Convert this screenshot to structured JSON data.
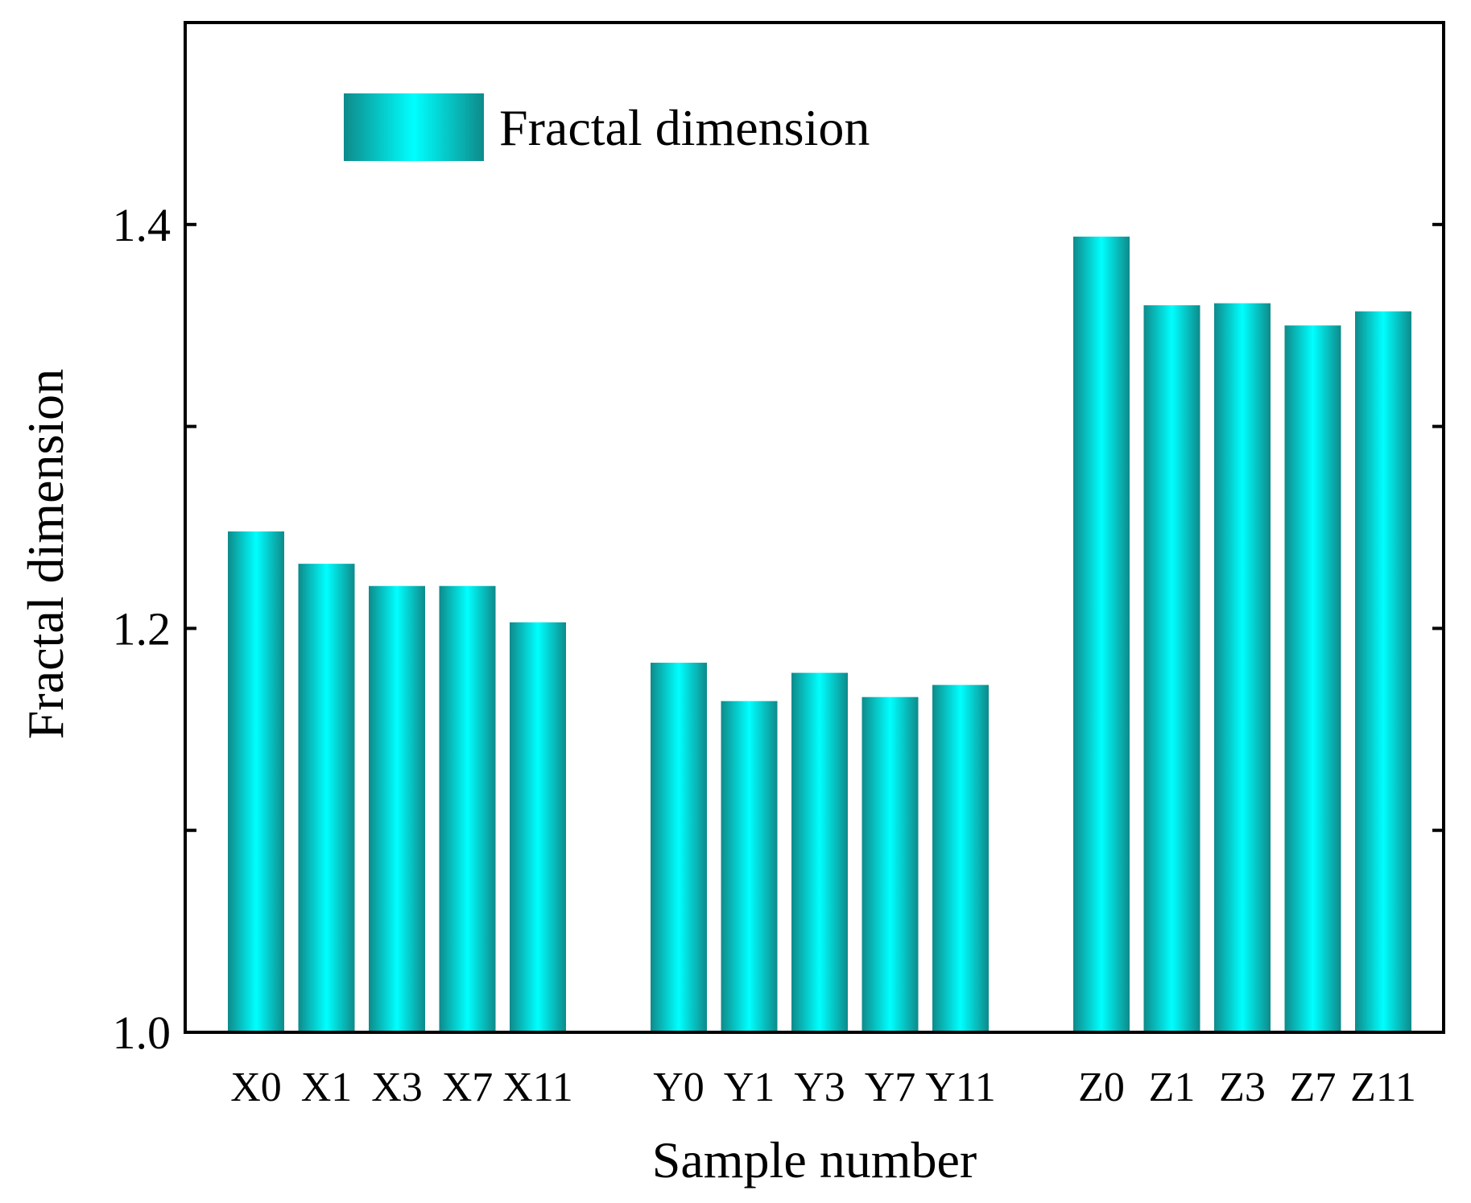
{
  "chart_data": {
    "type": "bar",
    "categories": [
      "X0",
      "X1",
      "X3",
      "X7",
      "X11",
      "Y0",
      "Y1",
      "Y3",
      "Y7",
      "Y11",
      "Z0",
      "Z1",
      "Z3",
      "Z7",
      "Z11"
    ],
    "groups": [
      {
        "name": "X",
        "categories": [
          "X0",
          "X1",
          "X3",
          "X7",
          "X11"
        ]
      },
      {
        "name": "Y",
        "categories": [
          "Y0",
          "Y1",
          "Y3",
          "Y7",
          "Y11"
        ]
      },
      {
        "name": "Z",
        "categories": [
          "Z0",
          "Z1",
          "Z3",
          "Z7",
          "Z11"
        ]
      }
    ],
    "series": [
      {
        "name": "Fractal dimension",
        "values": [
          1.248,
          1.232,
          1.221,
          1.221,
          1.203,
          1.183,
          1.164,
          1.178,
          1.166,
          1.172,
          1.394,
          1.36,
          1.361,
          1.35,
          1.357
        ]
      }
    ],
    "xlabel": "Sample number",
    "ylabel": "Fractal dimension",
    "ylim": [
      1.0,
      1.5
    ],
    "yticks": [
      1.0,
      1.1,
      1.2,
      1.3,
      1.4
    ],
    "ytick_labels": [
      "1.0",
      "",
      "1.2",
      "",
      "1.4"
    ],
    "legend_position": "top-left",
    "grid": false,
    "colors": {
      "bar_edge": "#0e8a8a",
      "bar_center": "#00ffff",
      "axis": "#000000"
    }
  }
}
